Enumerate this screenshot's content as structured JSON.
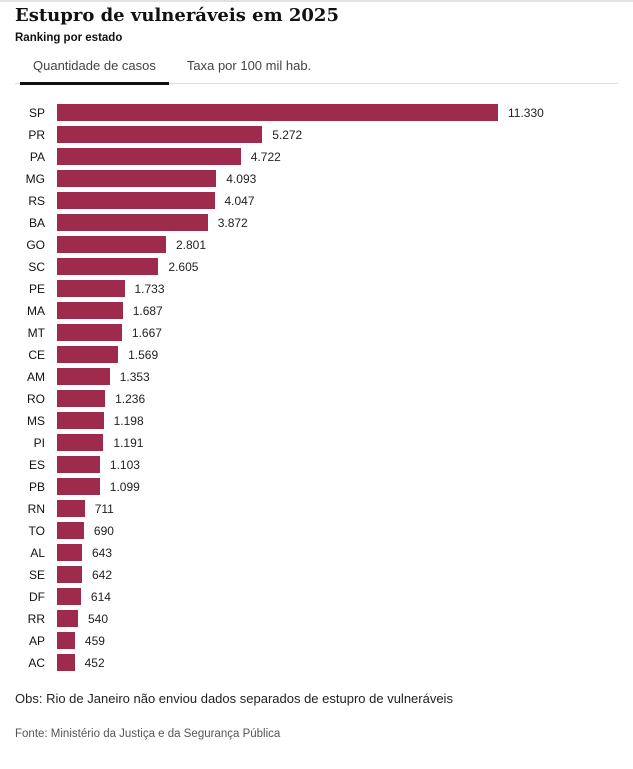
{
  "header": {
    "title": "Estupro de vulneráveis em 2025",
    "subtitle": "Ranking por estado"
  },
  "tabs": [
    {
      "label": "Quantidade de casos",
      "active": true
    },
    {
      "label": "Taxa por 100 mil hab.",
      "active": false
    }
  ],
  "chart_data": {
    "type": "bar",
    "orientation": "horizontal",
    "title": "Estupro de vulneráveis em 2025",
    "subtitle": "Ranking por estado",
    "active_metric": "Quantidade de casos",
    "categories": [
      "SP",
      "PR",
      "PA",
      "MG",
      "RS",
      "BA",
      "GO",
      "SC",
      "PE",
      "MA",
      "MT",
      "CE",
      "AM",
      "RO",
      "MS",
      "PI",
      "ES",
      "PB",
      "RN",
      "TO",
      "AL",
      "SE",
      "DF",
      "RR",
      "AP",
      "AC"
    ],
    "values": [
      11330,
      5272,
      4722,
      4093,
      4047,
      3872,
      2801,
      2605,
      1733,
      1687,
      1667,
      1569,
      1353,
      1236,
      1198,
      1191,
      1103,
      1099,
      711,
      690,
      643,
      642,
      614,
      540,
      459,
      452
    ],
    "value_labels": [
      "11.330",
      "5.272",
      "4.722",
      "4.093",
      "4.047",
      "3.872",
      "2.801",
      "2.605",
      "1.733",
      "1.687",
      "1.667",
      "1.569",
      "1.353",
      "1.236",
      "1.198",
      "1.191",
      "1.103",
      "1.099",
      "711",
      "690",
      "643",
      "642",
      "614",
      "540",
      "459",
      "452"
    ],
    "bar_color": "#9e2b4b",
    "xlim": [
      0,
      11330
    ],
    "grid": false,
    "legend": false
  },
  "footer": {
    "note": "Obs: Rio de Janeiro não enviou dados separados de estupro de vulneráveis",
    "source": "Fonte: Ministério da Justiça e da Segurança Pública"
  }
}
